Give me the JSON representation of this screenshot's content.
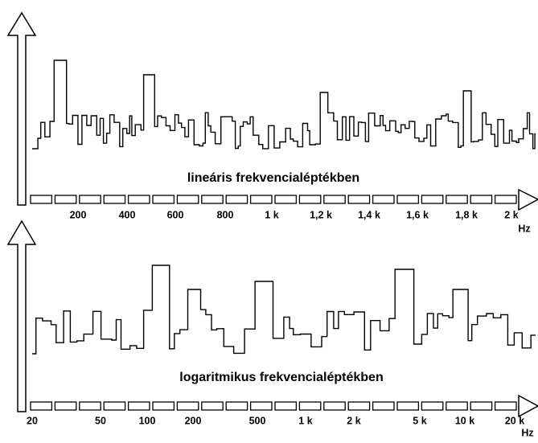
{
  "linear": {
    "caption": "lineáris frekvencialéptékben",
    "ticks": [
      "200",
      "400",
      "600",
      "800",
      "1 k",
      "1,2 k",
      "1,4 k",
      "1,6 k",
      "1,8 k",
      "2 k"
    ],
    "unit": "Hz"
  },
  "logarithmic": {
    "caption": "logaritmikus frekvencialéptékben",
    "ticks": [
      "20",
      "50",
      "100",
      "200",
      "500",
      "1 k",
      "2 k",
      "5 k",
      "10 k",
      "20 k"
    ],
    "unit": "Hz"
  }
}
